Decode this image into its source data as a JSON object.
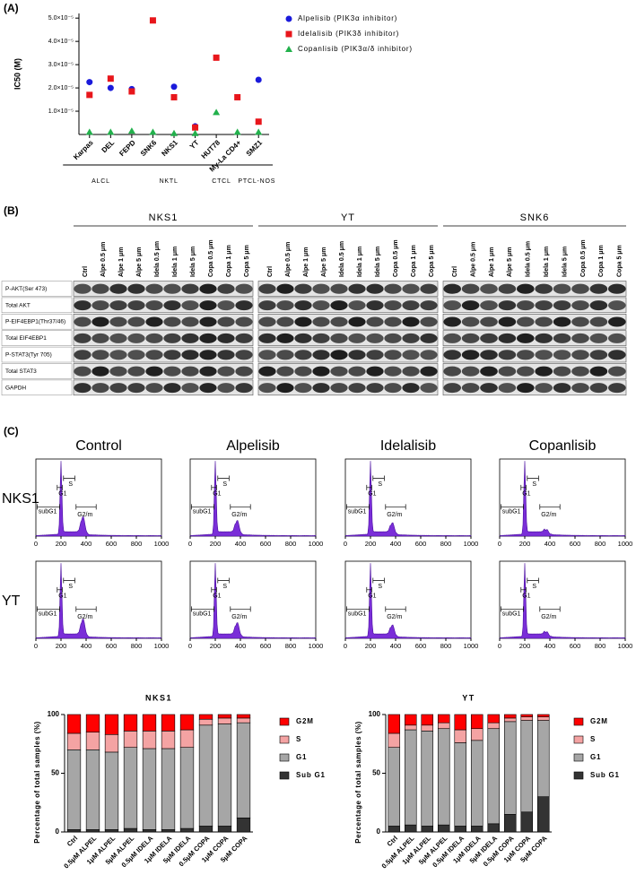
{
  "panels": {
    "a": "(A)",
    "b": "(B)",
    "c": "(C)"
  },
  "chart_data": [
    {
      "type": "scatter",
      "y_label": "IC50 (M)",
      "legend": "right",
      "categories": [
        "Karpas",
        "DEL",
        "FEPD",
        "SNK6",
        "NKS1",
        "YT",
        "HUT78",
        "My-La CD4+",
        "SMZ1"
      ],
      "series": [
        {
          "name": "Alpelisib (PIK3α inhibitor)",
          "color": "#1a1adb",
          "marker": "circle",
          "values": [
            2.25e-05,
            2e-05,
            1.95e-05,
            null,
            2.05e-05,
            3.5e-06,
            null,
            null,
            2.35e-05
          ]
        },
        {
          "name": "Idelalisib (PIK3δ inhibitor)",
          "color": "#e8161b",
          "marker": "square",
          "values": [
            1.7e-05,
            2.4e-05,
            1.85e-05,
            4.9e-05,
            1.6e-05,
            3e-06,
            3.3e-05,
            1.6e-05,
            5.5e-06
          ]
        },
        {
          "name": "Copanlisib (PIK3α/δ inhibitor)",
          "color": "#22b14c",
          "marker": "triangle",
          "values": [
            1e-06,
            1e-06,
            1.5e-06,
            1e-06,
            5e-07,
            5e-07,
            9.5e-06,
            1e-06,
            1e-06
          ]
        }
      ],
      "ylim": [
        0,
        5.2e-05
      ],
      "yticks": [
        {
          "value": 1e-05,
          "label": "1.0×10⁻⁵"
        },
        {
          "value": 2e-05,
          "label": "2.0×10⁻⁵"
        },
        {
          "value": 3e-05,
          "label": "3.0×10⁻⁵"
        },
        {
          "value": 4e-05,
          "label": "4.0×10⁻⁵"
        },
        {
          "value": 5e-05,
          "label": "5.0×10⁻⁵"
        }
      ],
      "groups": [
        {
          "label": "ALCL",
          "members": [
            "Karpas",
            "DEL",
            "FEPD"
          ]
        },
        {
          "label": "NKTL",
          "members": [
            "SNK6",
            "NKS1",
            "YT"
          ]
        },
        {
          "label": "CTCL",
          "members": [
            "HUT78",
            "My-La CD4+"
          ]
        },
        {
          "label": "PTCL-NOS",
          "members": [
            "SMZ1"
          ]
        }
      ]
    },
    {
      "type": "stacked_bar",
      "title": "NKS1",
      "y_label": "Percentage of total samples (%)",
      "legend": "right",
      "categories": [
        "Ctrl",
        "0.5μM ALPEL",
        "1μM ALPEL",
        "5μM ALPEL",
        "0.5μM IDELA",
        "1μM IDELA",
        "5μM IDELA",
        "0.5μM COPA",
        "1μM COPA",
        "5μM COPA"
      ],
      "series": [
        {
          "name": "Sub G1",
          "color": "#333333",
          "values": [
            2,
            2,
            2,
            3,
            2,
            2,
            3,
            5,
            5,
            12
          ]
        },
        {
          "name": "G1",
          "color": "#a6a6a6",
          "values": [
            68,
            68,
            66,
            69,
            69,
            69,
            69,
            86,
            87,
            81
          ]
        },
        {
          "name": "S",
          "color": "#f4a3a3",
          "values": [
            14,
            15,
            15,
            14,
            15,
            15,
            15,
            5,
            5,
            4
          ]
        },
        {
          "name": "G2M",
          "color": "#ff0000",
          "values": [
            16,
            15,
            17,
            14,
            14,
            14,
            13,
            4,
            3,
            3
          ]
        }
      ],
      "ylim": [
        0,
        100
      ],
      "yticks": [
        0,
        50,
        100
      ]
    },
    {
      "type": "stacked_bar",
      "title": "YT",
      "y_label": "Percentage of total samples (%)",
      "legend": "right",
      "categories": [
        "Ctrl",
        "0.5μM ALPEL",
        "1μM ALPEL",
        "5μM ALPEL",
        "0.5μM IDELA",
        "1μM IDELA",
        "5μM IDELA",
        "0.5μM COPA",
        "1μM COPA",
        "5μM COPA"
      ],
      "series": [
        {
          "name": "Sub G1",
          "color": "#333333",
          "values": [
            5,
            6,
            5,
            6,
            5,
            5,
            7,
            15,
            17,
            30
          ]
        },
        {
          "name": "G1",
          "color": "#a6a6a6",
          "values": [
            67,
            81,
            81,
            82,
            71,
            73,
            81,
            79,
            78,
            65
          ]
        },
        {
          "name": "S",
          "color": "#f4a3a3",
          "values": [
            12,
            4,
            5,
            5,
            11,
            10,
            5,
            3,
            3,
            3
          ]
        },
        {
          "name": "G2M",
          "color": "#ff0000",
          "values": [
            16,
            9,
            9,
            7,
            13,
            12,
            7,
            3,
            2,
            2
          ]
        }
      ],
      "ylim": [
        0,
        100
      ],
      "yticks": [
        0,
        50,
        100
      ]
    }
  ],
  "blot": {
    "cell_lines": [
      "NKS1",
      "YT",
      "SNK6"
    ],
    "lanes": [
      {
        "label": "Ctrl",
        "color": "#000000"
      },
      {
        "label": "Alpe 0.5 μm",
        "color": "#1a1adb"
      },
      {
        "label": "Alpe 1 μm",
        "color": "#1a1adb"
      },
      {
        "label": "Alpe 5 μm",
        "color": "#1a1adb"
      },
      {
        "label": "Idela 0.5 μm",
        "color": "#e8161b"
      },
      {
        "label": "Idela 1 μm",
        "color": "#e8161b"
      },
      {
        "label": "Idela 5 μm",
        "color": "#e8161b"
      },
      {
        "label": "Copa 0.5 μm",
        "color": "#22b14c"
      },
      {
        "label": "Copa 1 μm",
        "color": "#22b14c"
      },
      {
        "label": "Copa 5 μm",
        "color": "#22b14c"
      }
    ],
    "rows": [
      "P-AKT(Ser 473)",
      "Total AKT",
      "P-EIF4EBP1(Thr37/46)",
      "Total EIF4EBP1",
      "P-STAT3(Tyr 705)",
      "Total STAT3",
      "GAPDH"
    ]
  },
  "flow": {
    "columns": [
      {
        "label": "Control",
        "color": "#000000"
      },
      {
        "label": "Alpelisib",
        "color": "#e8161b"
      },
      {
        "label": "Idelalisib",
        "color": "#2222cc"
      },
      {
        "label": "Copanlisib",
        "color": "#22b14c"
      }
    ],
    "rows": [
      "NKS1",
      "YT"
    ],
    "gates": [
      "subG1",
      "G1",
      "S",
      "G2/m"
    ],
    "xticks": [
      0,
      200,
      400,
      600,
      800,
      1000
    ]
  }
}
